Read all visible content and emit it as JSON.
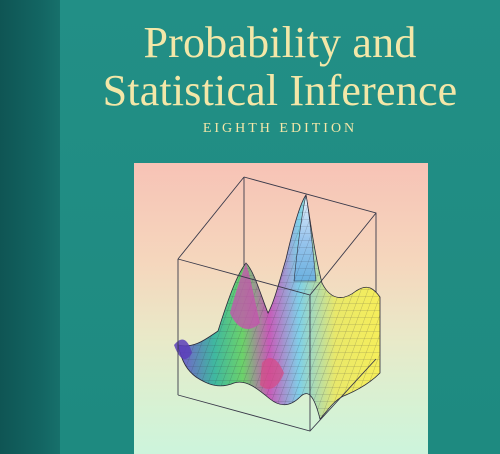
{
  "cover": {
    "title_line1": "Probability and",
    "title_line2": "Statistical Inference",
    "edition": "EIGHTH EDITION"
  },
  "colors": {
    "cover_teal": "#1f8a82",
    "spine_teal": "#136663",
    "title_cream": "#f3e7a8"
  },
  "illustration": {
    "kind": "3d-surface-plot-in-wireframe-box"
  }
}
